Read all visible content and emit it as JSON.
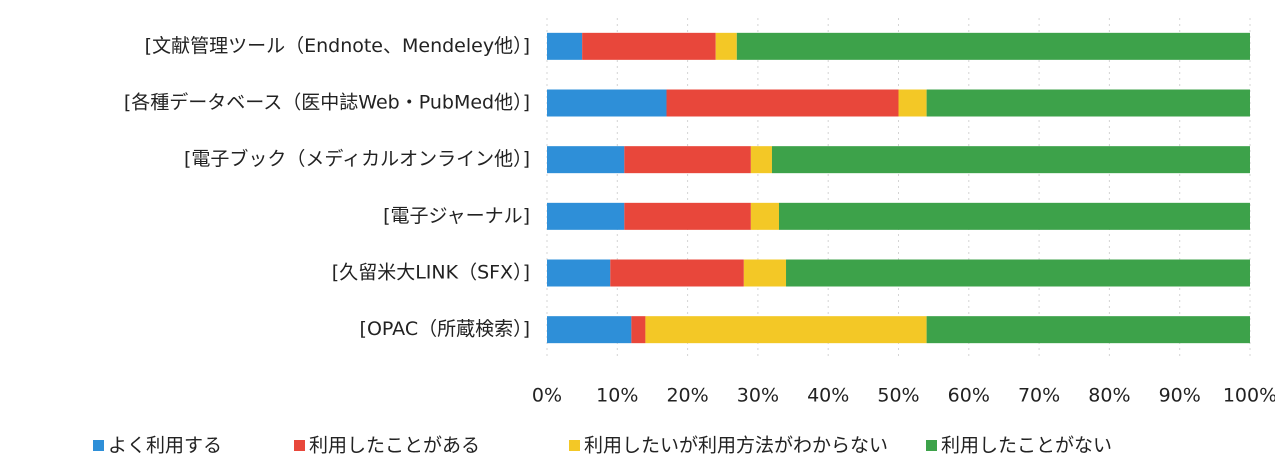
{
  "chart_data": {
    "type": "stacked_bar_horizontal",
    "categories": [
      "[文献管理ツール（Endnote、Mendeley他）]",
      "[各種データベース（医中誌Web・PubMed他）]",
      "[電子ブック（メディカルオンライン他）]",
      "[電子ジャーナル]",
      "[久留米大LINK（SFX）]",
      "[OPAC（所蔵検索）]"
    ],
    "series": [
      {
        "name": "よく利用する",
        "color": "#2e8fd8",
        "values": [
          5,
          17,
          11,
          11,
          9,
          12
        ]
      },
      {
        "name": "利用したことがある",
        "color": "#e8473b",
        "values": [
          19,
          33,
          18,
          18,
          19,
          2
        ]
      },
      {
        "name": "利用したいが利用方法がわからない",
        "color": "#f3c826",
        "values": [
          3,
          4,
          3,
          4,
          6,
          40
        ]
      },
      {
        "name": "利用したことがない",
        "color": "#3da24a",
        "values": [
          73,
          46,
          68,
          67,
          66,
          46
        ]
      }
    ],
    "xlim": [
      0,
      100
    ],
    "xticks": [
      {
        "value": 0,
        "label": "0%"
      },
      {
        "value": 10,
        "label": "10%"
      },
      {
        "value": 20,
        "label": "20%"
      },
      {
        "value": 30,
        "label": "30%"
      },
      {
        "value": 40,
        "label": "40%"
      },
      {
        "value": 50,
        "label": "50%"
      },
      {
        "value": 60,
        "label": "60%"
      },
      {
        "value": 70,
        "label": "70%"
      },
      {
        "value": 80,
        "label": "80%"
      },
      {
        "value": 90,
        "label": "90%"
      },
      {
        "value": 100,
        "label": "100%"
      }
    ],
    "grid": true,
    "legend": "bottom"
  }
}
